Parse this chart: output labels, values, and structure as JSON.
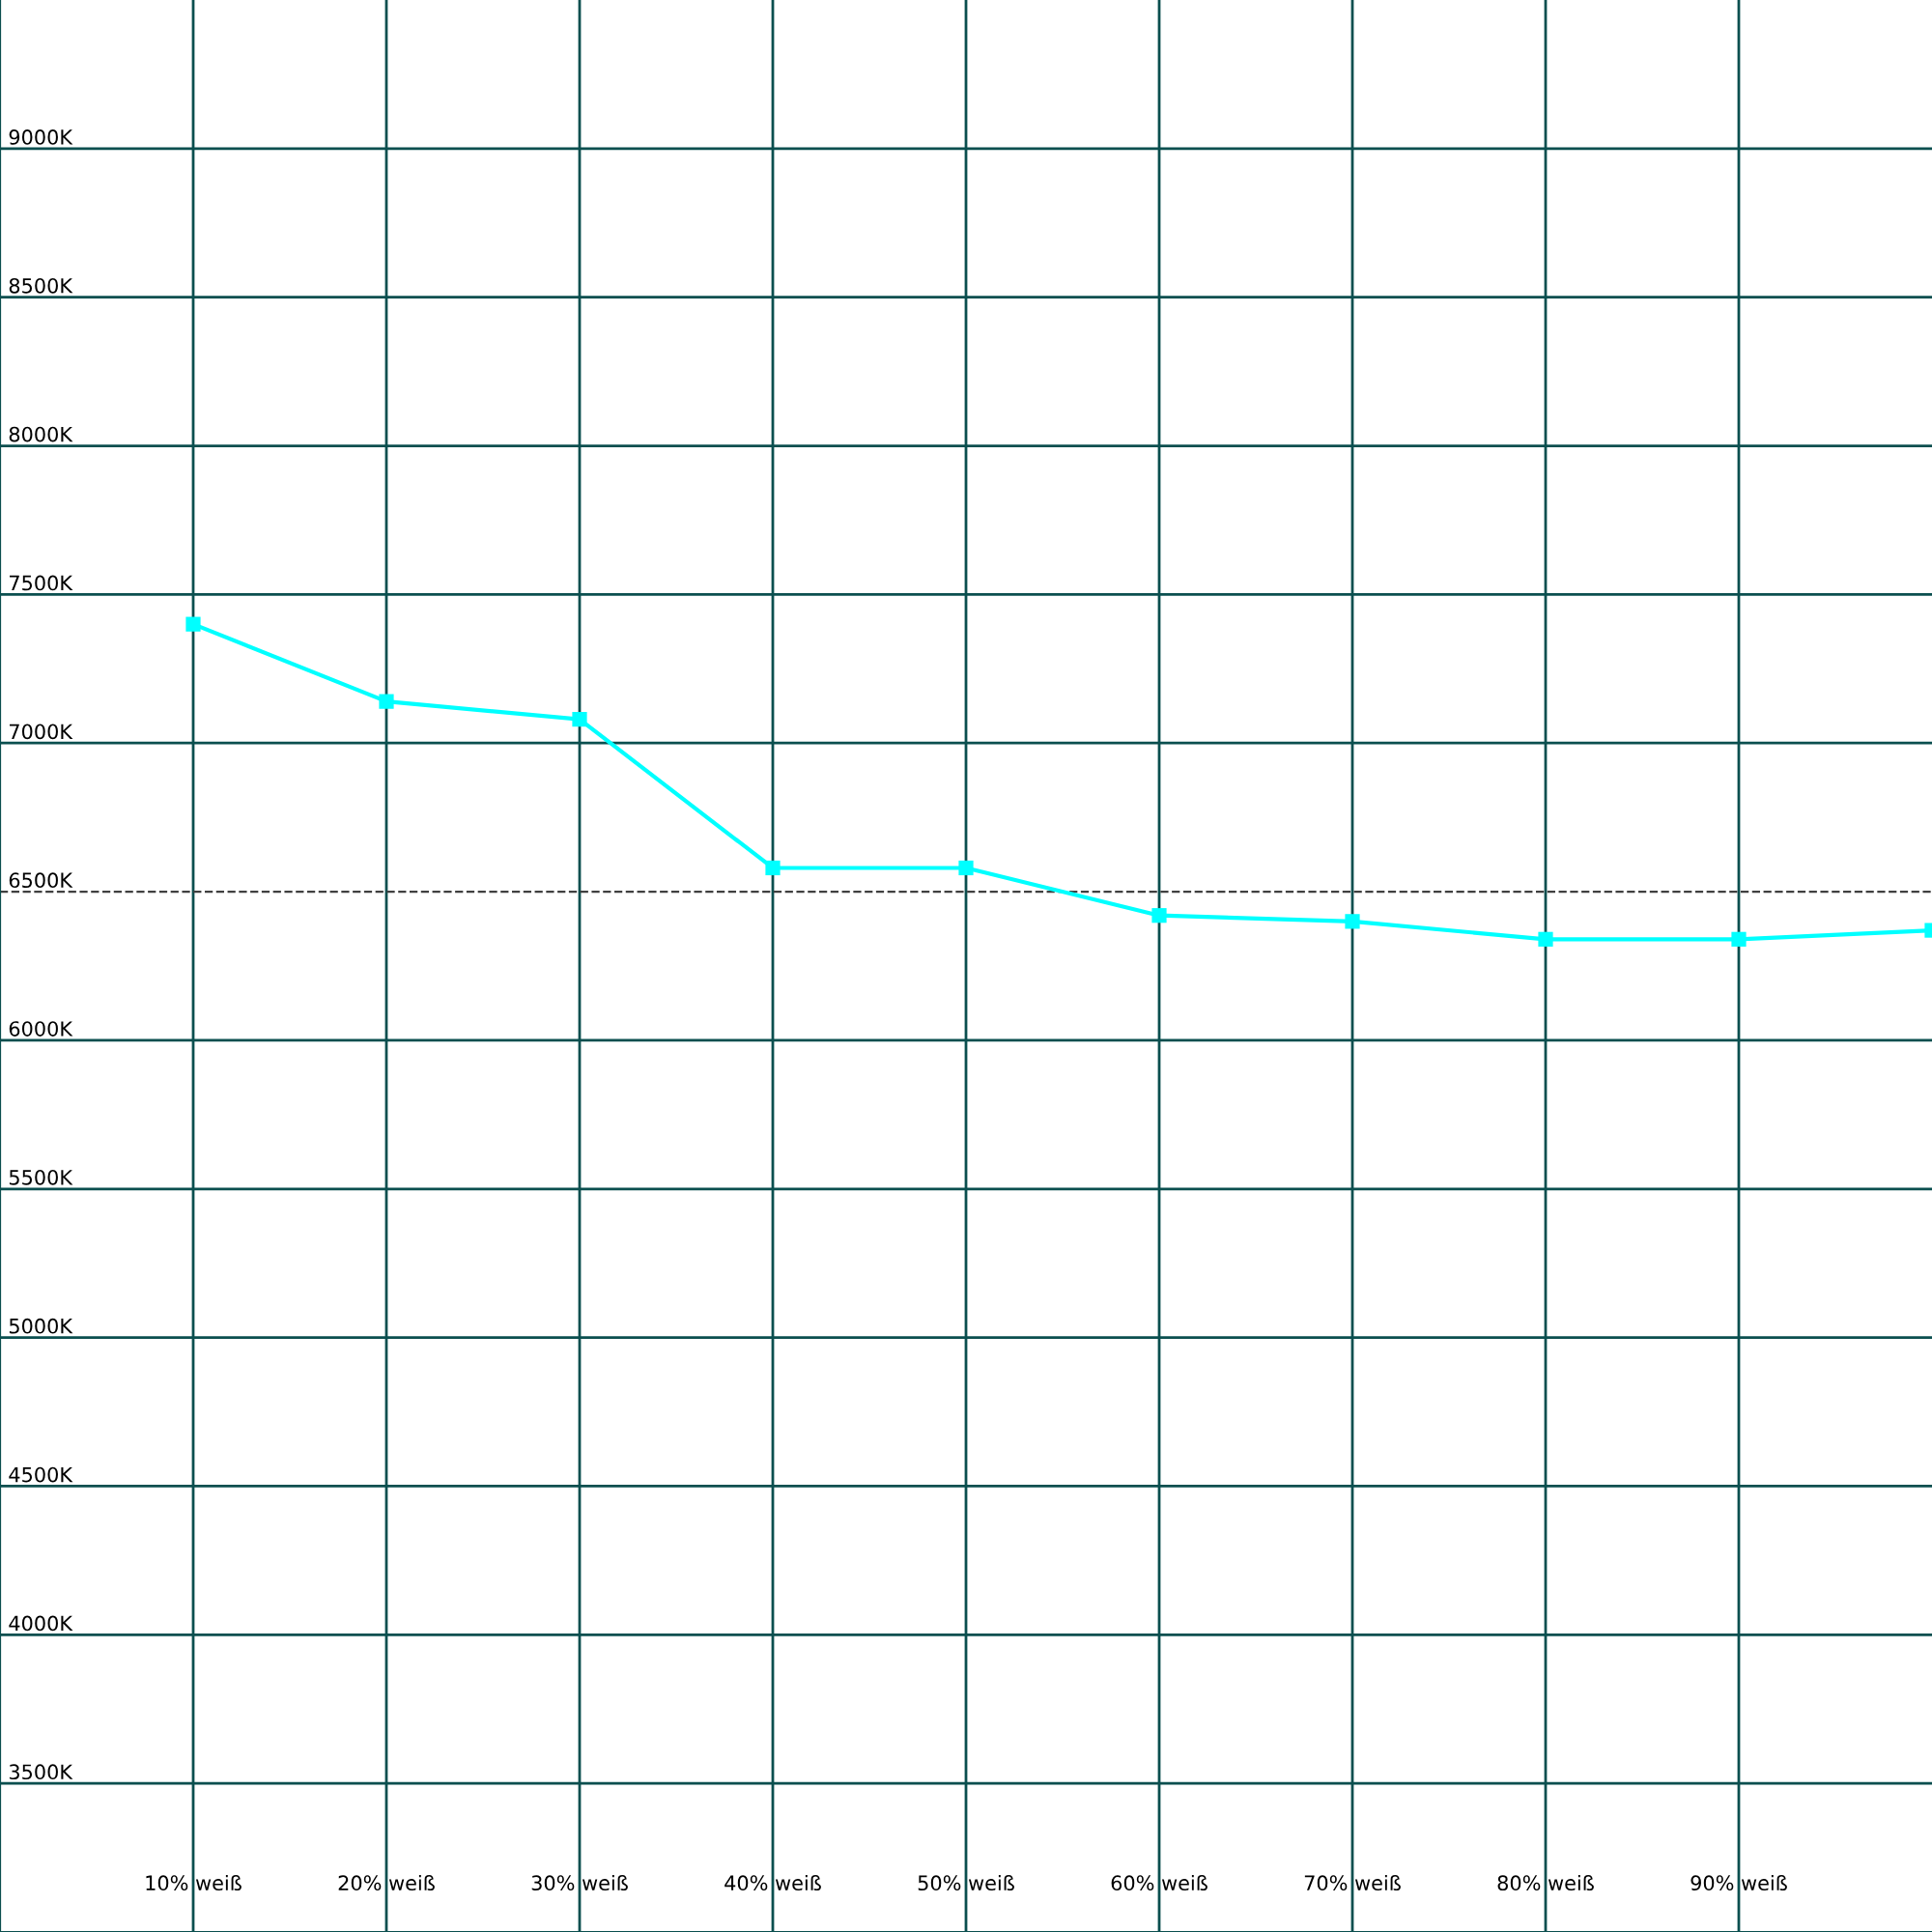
{
  "chart_data": {
    "type": "line",
    "x": [
      10,
      20,
      30,
      40,
      50,
      60,
      70,
      80,
      90,
      100
    ],
    "series": [
      {
        "color": "#00ffff",
        "values": [
          7400,
          7140,
          7080,
          6580,
          6580,
          6420,
          6400,
          6340,
          6340,
          6370
        ]
      }
    ],
    "xlim": [
      0,
      100
    ],
    "xticks": [
      {
        "value": 10,
        "label": "10% weiß"
      },
      {
        "value": 20,
        "label": "20% weiß"
      },
      {
        "value": 30,
        "label": "30% weiß"
      },
      {
        "value": 40,
        "label": "40% weiß"
      },
      {
        "value": 50,
        "label": "50% weiß"
      },
      {
        "value": 60,
        "label": "60% weiß"
      },
      {
        "value": 70,
        "label": "70% weiß"
      },
      {
        "value": 80,
        "label": "80% weiß"
      },
      {
        "value": 90,
        "label": "90% weiß"
      }
    ],
    "ylim": [
      3000,
      9500
    ],
    "yticks": [
      {
        "value": 3500,
        "label": "3500K"
      },
      {
        "value": 4000,
        "label": "4000K"
      },
      {
        "value": 4500,
        "label": "4500K"
      },
      {
        "value": 5000,
        "label": "5000K"
      },
      {
        "value": 5500,
        "label": "5500K"
      },
      {
        "value": 6000,
        "label": "6000K"
      },
      {
        "value": 6500,
        "label": "6500K"
      },
      {
        "value": 7000,
        "label": "7000K"
      },
      {
        "value": 7500,
        "label": "7500K"
      },
      {
        "value": 8000,
        "label": "8000K"
      },
      {
        "value": 8500,
        "label": "8500K"
      },
      {
        "value": 9000,
        "label": "9000K"
      }
    ],
    "ref_lines": [
      {
        "axis": "y",
        "value": 6500,
        "color": "#404040",
        "line_style": "dashed"
      }
    ],
    "grid": true,
    "marker": "square",
    "line_style": "solid"
  }
}
